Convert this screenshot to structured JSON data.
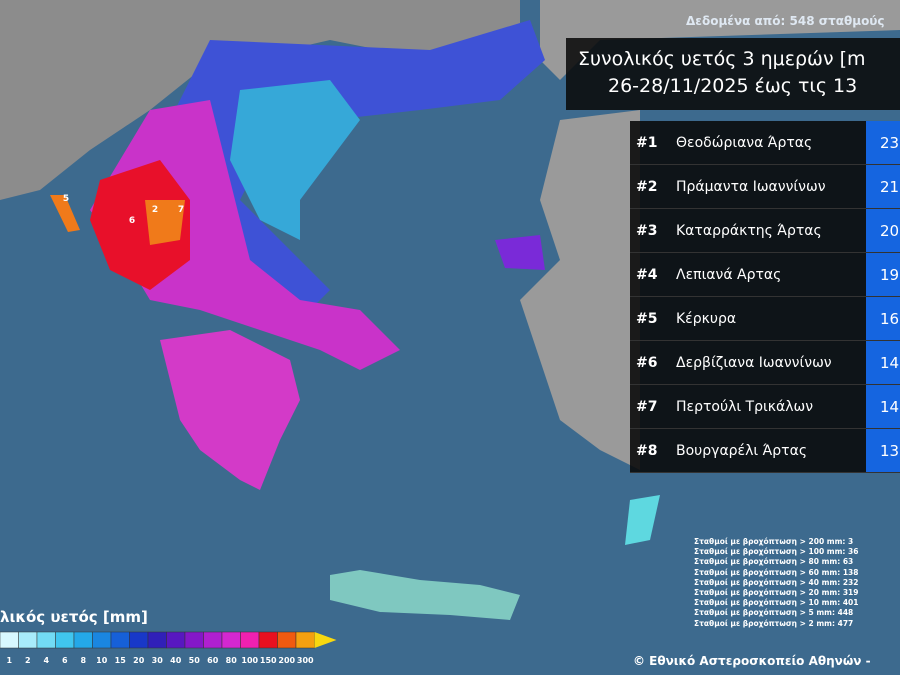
{
  "header": {
    "source": "Δεδομένα από: 548 σταθμούς",
    "title_line1": "Συνολικός υετός 3 ημερών [m",
    "title_line2": "26-28/11/2025 έως τις 13"
  },
  "ranking": {
    "rows": [
      {
        "rank": "#1",
        "name": "Θεοδώριανα Άρτας",
        "value": "23"
      },
      {
        "rank": "#2",
        "name": "Πράμαντα Ιωαννίνων",
        "value": "21"
      },
      {
        "rank": "#3",
        "name": "Καταρράκτης Άρτας",
        "value": "20"
      },
      {
        "rank": "#4",
        "name": "Λεπιανά Αρτας",
        "value": "19"
      },
      {
        "rank": "#5",
        "name": "Κέρκυρα",
        "value": "16"
      },
      {
        "rank": "#6",
        "name": "Δερβίζιανα Ιωαννίνων",
        "value": "14"
      },
      {
        "rank": "#7",
        "name": "Περτούλι Τρικάλων",
        "value": "14"
      },
      {
        "rank": "#8",
        "name": "Βουργαρέλι Άρτας",
        "value": "13"
      }
    ]
  },
  "station_counts": [
    "Σταθμοί με βροχόπτωση > 200 mm: 3",
    "Σταθμοί με βροχόπτωση > 100 mm: 36",
    "Σταθμοί με βροχόπτωση > 80 mm: 63",
    "Σταθμοί με βροχόπτωση > 60 mm: 138",
    "Σταθμοί με βροχόπτωση > 40 mm: 232",
    "Σταθμοί με βροχόπτωση > 20 mm: 319",
    "Σταθμοί με βροχόπτωση > 10 mm: 401",
    "Σταθμοί με βροχόπτωση > 5 mm: 448",
    "Σταθμοί με βροχόπτωση > 2 mm: 477"
  ],
  "legend": {
    "title": "λικός υετός [mm]",
    "labels": [
      "1",
      "2",
      "4",
      "6",
      "8",
      "10",
      "15",
      "20",
      "30",
      "40",
      "50",
      "60",
      "80",
      "100",
      "150",
      "200",
      "300"
    ]
  },
  "map_labels": [
    "5",
    "6",
    "2",
    "7"
  ],
  "footer": "© Εθνικό Αστεροσκοπείο Αθηνών - "
}
